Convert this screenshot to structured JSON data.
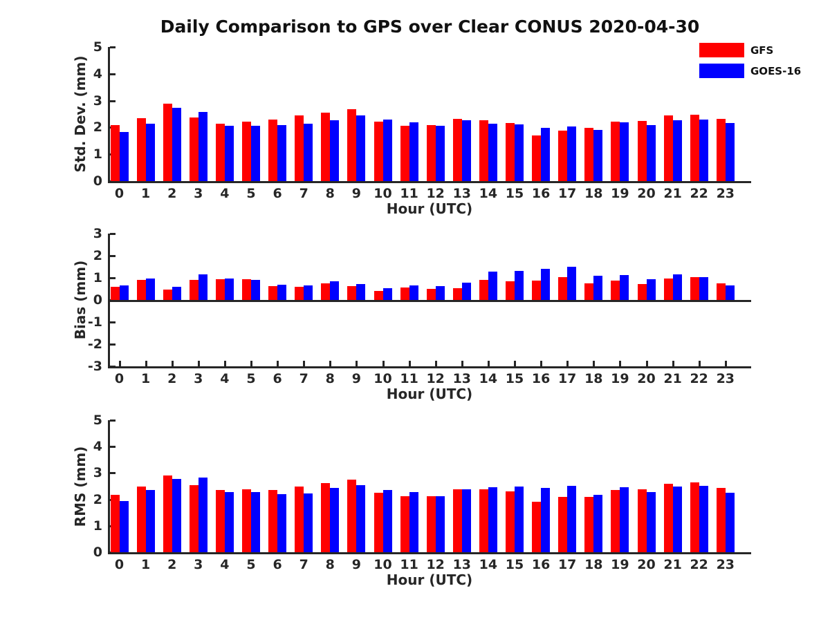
{
  "title": "Daily Comparison to GPS over Clear CONUS 2020-04-30",
  "legend": {
    "position": "top-right",
    "entries": [
      {
        "label": "GFS",
        "color": "#ff0000"
      },
      {
        "label": "GOES-16",
        "color": "#0000ff"
      }
    ]
  },
  "chart_data": [
    {
      "type": "bar",
      "panel": "std-dev",
      "ylabel": "Std. Dev. (mm)",
      "xlabel": "Hour (UTC)",
      "ylim": [
        0,
        5
      ],
      "yticks": [
        0,
        1,
        2,
        3,
        4,
        5
      ],
      "grid": false,
      "categories": [
        0,
        1,
        2,
        3,
        4,
        5,
        6,
        7,
        8,
        9,
        10,
        11,
        12,
        13,
        14,
        15,
        16,
        17,
        18,
        19,
        20,
        21,
        22,
        23
      ],
      "series": [
        {
          "name": "GFS",
          "color": "#ff0000",
          "values": [
            2.08,
            2.34,
            2.88,
            2.37,
            2.15,
            2.21,
            2.3,
            2.45,
            2.54,
            2.68,
            2.22,
            2.07,
            2.08,
            2.33,
            2.27,
            2.17,
            1.71,
            1.88,
            1.99,
            2.22,
            2.25,
            2.44,
            2.47,
            2.31
          ]
        },
        {
          "name": "GOES-16",
          "color": "#0000ff",
          "values": [
            1.83,
            2.15,
            2.73,
            2.58,
            2.06,
            2.07,
            2.09,
            2.14,
            2.28,
            2.46,
            2.3,
            2.2,
            2.06,
            2.27,
            2.14,
            2.12,
            1.98,
            2.03,
            1.92,
            2.19,
            2.1,
            2.26,
            2.3,
            2.17
          ]
        }
      ]
    },
    {
      "type": "bar",
      "panel": "bias",
      "ylabel": "Bias (mm)",
      "xlabel": "Hour (UTC)",
      "ylim": [
        -3,
        3
      ],
      "yticks": [
        3,
        2,
        1,
        0,
        -1,
        -2,
        -3
      ],
      "grid": false,
      "categories": [
        0,
        1,
        2,
        3,
        4,
        5,
        6,
        7,
        8,
        9,
        10,
        11,
        12,
        13,
        14,
        15,
        16,
        17,
        18,
        19,
        20,
        21,
        22,
        23
      ],
      "series": [
        {
          "name": "GFS",
          "color": "#ff0000",
          "values": [
            0.6,
            0.92,
            0.48,
            0.92,
            0.95,
            0.93,
            0.61,
            0.58,
            0.74,
            0.62,
            0.42,
            0.57,
            0.51,
            0.54,
            0.92,
            0.85,
            0.86,
            1.02,
            0.75,
            0.86,
            0.73,
            0.96,
            1.03,
            0.75
          ]
        },
        {
          "name": "GOES-16",
          "color": "#0000ff",
          "values": [
            0.67,
            0.97,
            0.58,
            1.16,
            0.97,
            0.92,
            0.7,
            0.67,
            0.85,
            0.72,
            0.53,
            0.66,
            0.64,
            0.78,
            1.28,
            1.31,
            1.42,
            1.5,
            1.1,
            1.14,
            0.94,
            1.15,
            1.03,
            0.66
          ]
        }
      ]
    },
    {
      "type": "bar",
      "panel": "rms",
      "ylabel": "RMS (mm)",
      "xlabel": "Hour (UTC)",
      "ylim": [
        0,
        5
      ],
      "yticks": [
        0,
        1,
        2,
        3,
        4,
        5
      ],
      "grid": false,
      "categories": [
        0,
        1,
        2,
        3,
        4,
        5,
        6,
        7,
        8,
        9,
        10,
        11,
        12,
        13,
        14,
        15,
        16,
        17,
        18,
        19,
        20,
        21,
        22,
        23
      ],
      "series": [
        {
          "name": "GFS",
          "color": "#ff0000",
          "values": [
            2.17,
            2.5,
            2.9,
            2.53,
            2.36,
            2.38,
            2.36,
            2.5,
            2.63,
            2.74,
            2.26,
            2.11,
            2.11,
            2.37,
            2.39,
            2.31,
            1.9,
            2.1,
            2.1,
            2.35,
            2.37,
            2.6,
            2.65,
            2.44
          ]
        },
        {
          "name": "GOES-16",
          "color": "#0000ff",
          "values": [
            1.93,
            2.36,
            2.77,
            2.82,
            2.28,
            2.28,
            2.2,
            2.23,
            2.43,
            2.55,
            2.35,
            2.27,
            2.11,
            2.37,
            2.46,
            2.49,
            2.43,
            2.51,
            2.18,
            2.45,
            2.29,
            2.48,
            2.51,
            2.25
          ]
        }
      ]
    }
  ]
}
